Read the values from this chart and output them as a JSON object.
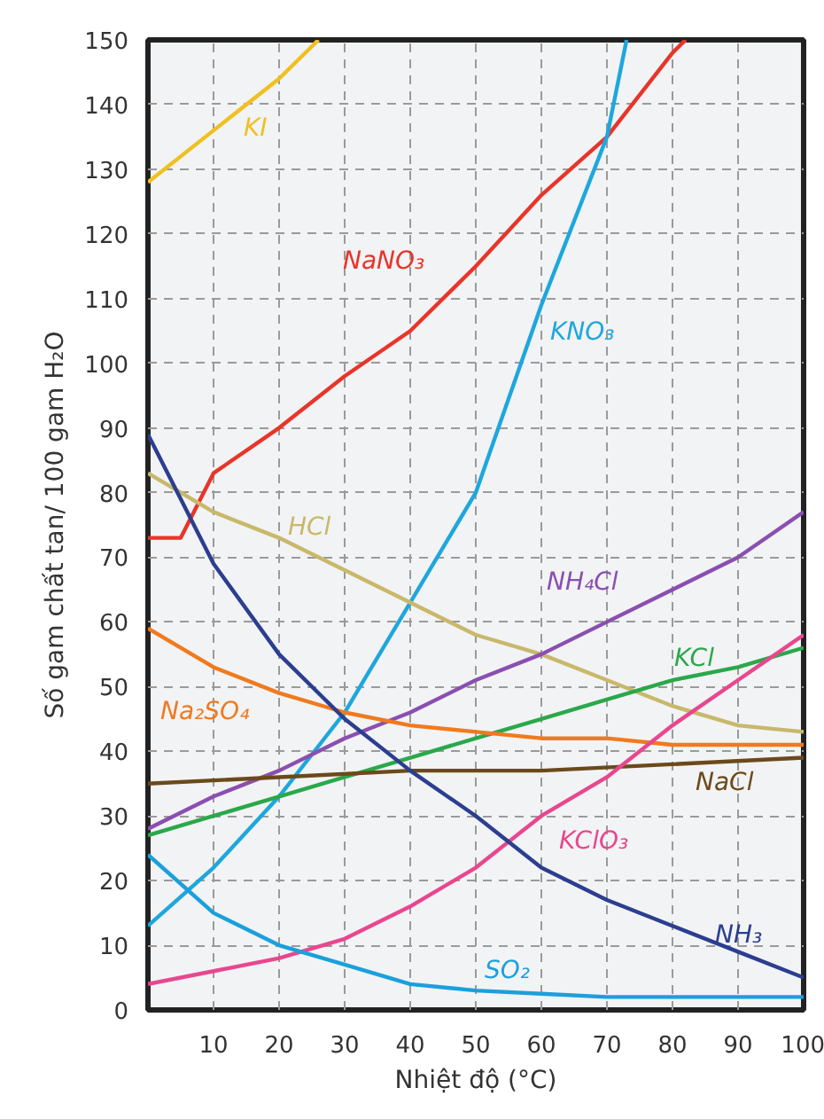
{
  "chart_data": {
    "type": "line",
    "xlabel": "Nhiệt độ (°C)",
    "ylabel": "Số gam chất tan/ 100 gam H₂O",
    "xlim": [
      0,
      100
    ],
    "ylim": [
      0,
      150
    ],
    "xticks": [
      {
        "value": 0,
        "label": null
      },
      10,
      20,
      30,
      40,
      50,
      60,
      70,
      80,
      90,
      100
    ],
    "yticks": [
      0,
      10,
      20,
      30,
      40,
      50,
      60,
      70,
      80,
      90,
      100,
      110,
      120,
      130,
      140,
      150
    ],
    "grid": true,
    "line_style": "solid",
    "series": [
      {
        "name": "KI",
        "color": "#f0c020",
        "x": [
          0,
          10,
          20,
          26
        ],
        "values": [
          128,
          136,
          144,
          150
        ]
      },
      {
        "name": "NaNO₃",
        "color": "#e8352a",
        "x": [
          0,
          5,
          10,
          20,
          30,
          40,
          50,
          60,
          70,
          80,
          82
        ],
        "values": [
          73,
          73,
          83,
          90,
          98,
          105,
          115,
          126,
          135,
          148,
          150
        ]
      },
      {
        "name": "KNO₃",
        "color": "#1ea7dc",
        "x": [
          0,
          10,
          20,
          30,
          40,
          50,
          60,
          70,
          73
        ],
        "values": [
          13,
          22,
          33,
          46,
          63,
          80,
          109,
          135,
          150
        ]
      },
      {
        "name": "HCl",
        "color": "#c8b86a",
        "x": [
          0,
          10,
          20,
          30,
          40,
          50,
          60,
          70,
          80,
          90,
          100
        ],
        "values": [
          83,
          77,
          73,
          68,
          63,
          58,
          55,
          51,
          47,
          44,
          43
        ]
      },
      {
        "name": "NH₄Cl",
        "color": "#8a4fb0",
        "x": [
          0,
          10,
          20,
          30,
          40,
          50,
          60,
          70,
          80,
          90,
          100
        ],
        "values": [
          28,
          33,
          37,
          42,
          46,
          51,
          55,
          60,
          65,
          70,
          77
        ]
      },
      {
        "name": "KCl",
        "color": "#2aa84a",
        "x": [
          0,
          10,
          20,
          30,
          40,
          50,
          60,
          70,
          80,
          90,
          100
        ],
        "values": [
          27,
          30,
          33,
          36,
          39,
          42,
          45,
          48,
          51,
          53,
          56
        ]
      },
      {
        "name": "Na₂SO₄",
        "color": "#f07a1e",
        "x": [
          0,
          10,
          20,
          30,
          40,
          50,
          60,
          70,
          80,
          90,
          100
        ],
        "values": [
          59,
          53,
          49,
          46,
          44,
          43,
          42,
          42,
          41,
          41,
          41
        ]
      },
      {
        "name": "NaCl",
        "color": "#6b4a1a",
        "x": [
          0,
          20,
          40,
          60,
          80,
          100
        ],
        "values": [
          35,
          36,
          37,
          37,
          38,
          39
        ]
      },
      {
        "name": "KClO₃",
        "color": "#e8478f",
        "x": [
          0,
          10,
          20,
          30,
          40,
          50,
          60,
          70,
          80,
          90,
          100
        ],
        "values": [
          4,
          6,
          8,
          11,
          16,
          22,
          30,
          36,
          44,
          51,
          58
        ]
      },
      {
        "name": "NH₃",
        "color": "#2b3e8f",
        "x": [
          0,
          10,
          20,
          30,
          40,
          50,
          60,
          70,
          80,
          90,
          100
        ],
        "values": [
          89,
          69,
          55,
          45,
          37,
          30,
          22,
          17,
          13,
          9,
          5
        ]
      },
      {
        "name": "SO₂",
        "color": "#1aa0dc",
        "x": [
          0,
          10,
          20,
          30,
          40,
          50,
          60,
          70,
          80,
          90,
          100
        ],
        "values": [
          24,
          15,
          10,
          7,
          4,
          3,
          2.5,
          2,
          2,
          2,
          2
        ]
      }
    ]
  }
}
